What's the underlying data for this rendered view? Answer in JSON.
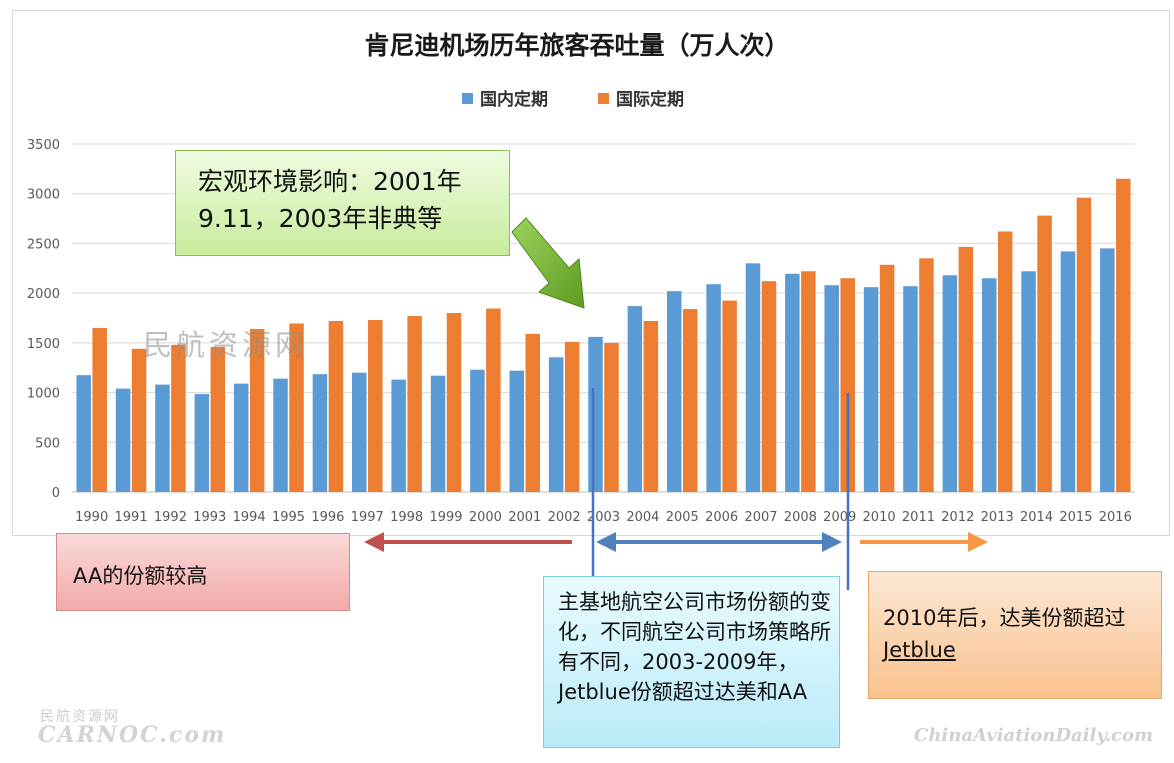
{
  "chart_data": {
    "type": "bar",
    "title": "肯尼迪机场历年旅客吞吐量（万人次）",
    "categories": [
      "1990",
      "1991",
      "1992",
      "1993",
      "1994",
      "1995",
      "1996",
      "1997",
      "1998",
      "1999",
      "2000",
      "2001",
      "2002",
      "2003",
      "2004",
      "2005",
      "2006",
      "2007",
      "2008",
      "2009",
      "2010",
      "2011",
      "2012",
      "2013",
      "2014",
      "2015",
      "2016"
    ],
    "series": [
      {
        "name": "国内定期",
        "color": "#5b9bd5",
        "values": [
          1175,
          1040,
          1080,
          985,
          1090,
          1140,
          1185,
          1200,
          1130,
          1170,
          1230,
          1220,
          1355,
          1560,
          1870,
          2020,
          2090,
          2300,
          2195,
          2080,
          2060,
          2070,
          2180,
          2150,
          2220,
          2420,
          2450
        ]
      },
      {
        "name": "国际定期",
        "color": "#ed7d31",
        "values": [
          1650,
          1440,
          1480,
          1460,
          1640,
          1695,
          1720,
          1730,
          1770,
          1800,
          1845,
          1590,
          1510,
          1500,
          1720,
          1840,
          1925,
          2120,
          2220,
          2150,
          2285,
          2350,
          2465,
          2620,
          2780,
          2960,
          3150
        ]
      }
    ],
    "ylim": [
      0,
      3500
    ],
    "yticks": [
      0,
      500,
      1000,
      1500,
      2000,
      2500,
      3000,
      3500
    ],
    "grid": true,
    "legend": "top-center",
    "annotations": {
      "macro": "宏观环境影响：2001年9.11，2003年非典等",
      "aa": "AA的份额较高",
      "base": "主基地航空公司市场份额的变化，不同航空公司市场策略所有不同，2003-2009年，Jetblue份额超过达美和AA",
      "after_2010_prefix": "2010年后，达美份额超过",
      "after_2010_underlined": "Jetblue"
    }
  },
  "watermarks": {
    "center": "民航资源网",
    "left_top": "民航资源网",
    "left_bottom": "CARNOC.com",
    "right": "ChinaAviationDaily.com"
  }
}
